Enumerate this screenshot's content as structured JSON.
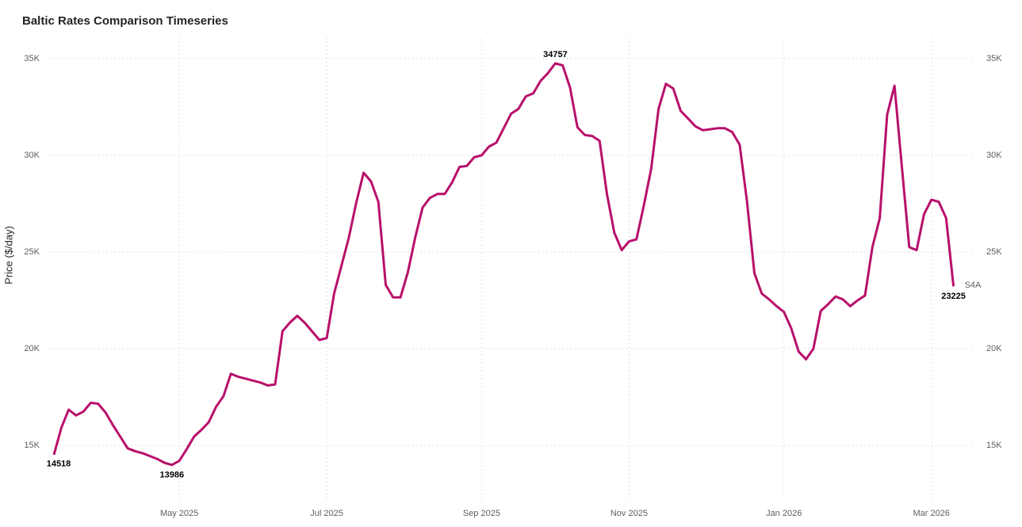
{
  "chart_data": {
    "type": "line",
    "title": "Baltic Rates Comparison Timeseries",
    "y_label": "Price ($/day)",
    "categories": [
      null,
      null,
      null,
      null,
      null,
      null,
      null,
      null,
      null,
      null,
      null,
      null,
      null,
      null,
      null,
      null,
      null,
      "May 2025",
      null,
      null,
      null,
      null,
      null,
      null,
      null,
      null,
      null,
      null,
      null,
      null,
      null,
      null,
      null,
      null,
      null,
      null,
      null,
      "Jul 2025",
      null,
      null,
      null,
      null,
      null,
      null,
      null,
      null,
      null,
      null,
      null,
      null,
      null,
      null,
      null,
      null,
      null,
      null,
      null,
      null,
      "Sep 2025",
      null,
      null,
      null,
      null,
      null,
      null,
      null,
      null,
      null,
      null,
      null,
      null,
      null,
      null,
      null,
      null,
      null,
      null,
      null,
      "Nov 2025",
      null,
      null,
      null,
      null,
      null,
      null,
      null,
      null,
      null,
      null,
      null,
      null,
      null,
      null,
      null,
      null,
      null,
      null,
      null,
      null,
      "Jan 2026",
      null,
      null,
      null,
      null,
      null,
      null,
      null,
      null,
      null,
      null,
      null,
      null,
      null,
      null,
      null,
      null,
      null,
      null,
      null,
      "Mar 2026",
      null,
      null,
      null
    ],
    "series": [
      {
        "name": "S4A",
        "color": "#b8106b",
        "values": [
          14518,
          15900,
          16850,
          16550,
          16750,
          17200,
          17150,
          16700,
          16050,
          15450,
          14850,
          14700,
          14600,
          14450,
          14300,
          14100,
          13986,
          14200,
          14800,
          15450,
          15800,
          16200,
          17000,
          17550,
          18700,
          18550,
          18450,
          18350,
          18250,
          18100,
          18150,
          20900,
          21350,
          21700,
          21350,
          20900,
          20450,
          20550,
          22850,
          24300,
          25750,
          27550,
          29100,
          28650,
          27600,
          23300,
          22650,
          22650,
          23950,
          25750,
          27300,
          27800,
          28000,
          28000,
          28600,
          29400,
          29450,
          29900,
          30000,
          30450,
          30650,
          31400,
          32150,
          32400,
          33050,
          33200,
          33850,
          34250,
          34757,
          34650,
          33500,
          31450,
          31050,
          31000,
          30750,
          28000,
          26000,
          25100,
          25550,
          25650,
          27400,
          29300,
          32400,
          33700,
          33450,
          32300,
          31900,
          31500,
          31300,
          31350,
          31400,
          31400,
          31200,
          30550,
          27600,
          23900,
          22850,
          22550,
          22200,
          21900,
          21050,
          19850,
          19450,
          20000,
          21950,
          22300,
          22700,
          22550,
          22200,
          22500,
          22750,
          25250,
          26750,
          32100,
          33600,
          29400,
          25250,
          25100,
          26950,
          27700,
          27600,
          26750,
          23225
        ]
      }
    ],
    "ylim": [
      13000,
      36000
    ],
    "yticks": [
      {
        "value": 15000,
        "label": "15K"
      },
      {
        "value": 20000,
        "label": "20K"
      },
      {
        "value": 25000,
        "label": "25K"
      },
      {
        "value": 30000,
        "label": "30K"
      },
      {
        "value": 35000,
        "label": "35K"
      }
    ],
    "grid": true
  }
}
